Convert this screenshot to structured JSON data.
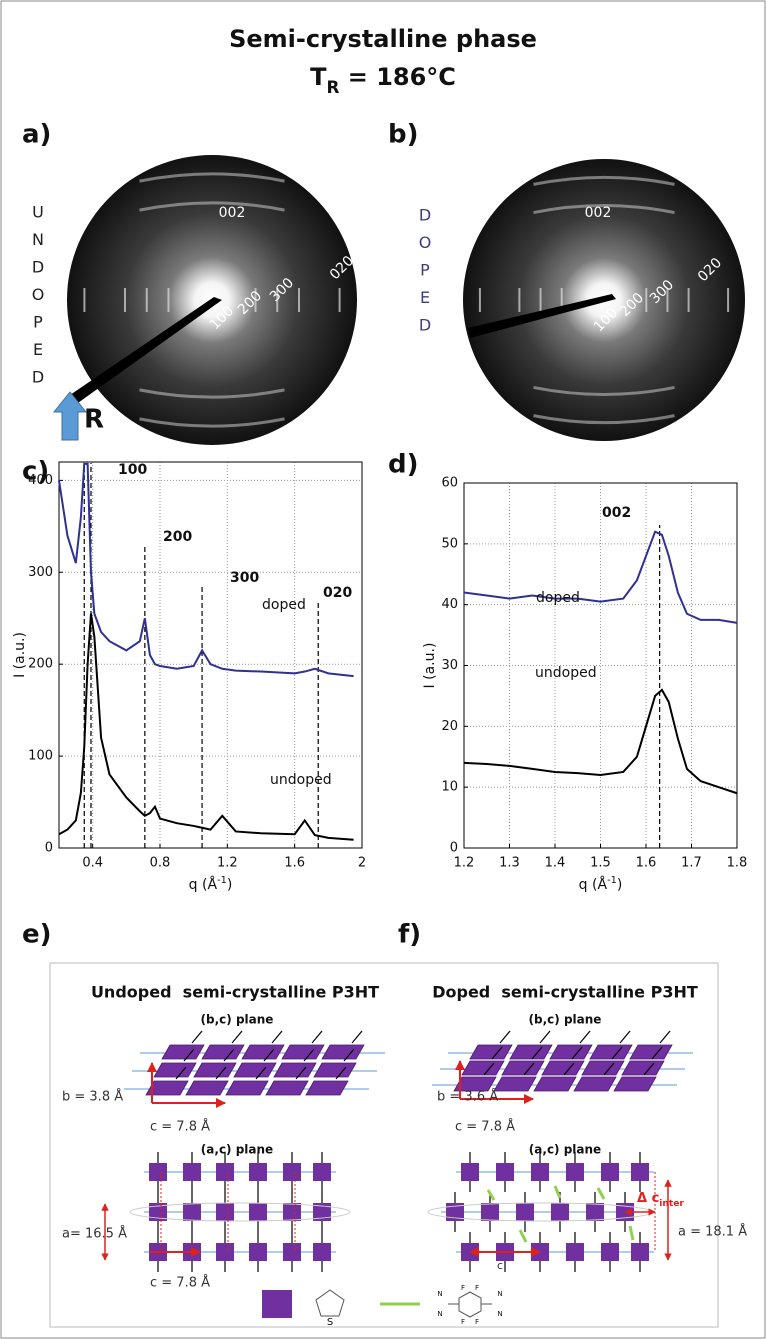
{
  "title": "Semi-crystalline phase",
  "condition": {
    "main": "T",
    "sub": "R",
    "rest": " = 186°C"
  },
  "panel_labels": [
    "a)",
    "b)",
    "c)",
    "d)",
    "e)",
    "f)"
  ],
  "diffraction": [
    {
      "side_letters": [
        "U",
        "N",
        "D",
        "O",
        "P",
        "E",
        "D"
      ],
      "rings": [
        "002",
        "100",
        "200",
        "300",
        "020"
      ],
      "rubbing": "R"
    },
    {
      "side_letters": [
        "D",
        "O",
        "P",
        "E",
        "D"
      ],
      "rings": [
        "002",
        "100",
        "200",
        "300",
        "020"
      ]
    }
  ],
  "chart_data": [
    {
      "type": "line",
      "x": [
        0.2,
        0.25,
        0.3,
        0.33,
        0.35,
        0.37,
        0.39,
        0.41,
        0.45,
        0.5,
        0.6,
        0.68,
        0.71,
        0.74,
        0.77,
        0.8,
        0.9,
        1.0,
        1.05,
        1.1,
        1.17,
        1.25,
        1.4,
        1.6,
        1.66,
        1.72,
        1.8,
        1.95
      ],
      "series": [
        {
          "name": "doped",
          "color": "#2e3192",
          "values": [
            400,
            340,
            310,
            360,
            418,
            418,
            300,
            255,
            235,
            225,
            215,
            225,
            250,
            210,
            200,
            198,
            195,
            198,
            215,
            200,
            195,
            193,
            192,
            190,
            192,
            195,
            190,
            187
          ]
        },
        {
          "name": "undoped",
          "color": "#000000",
          "values": [
            15,
            20,
            30,
            60,
            110,
            200,
            255,
            230,
            120,
            80,
            55,
            40,
            35,
            38,
            45,
            32,
            27,
            24,
            22,
            20,
            35,
            18,
            16,
            15,
            30,
            14,
            11,
            9
          ]
        }
      ],
      "xlim": [
        0.2,
        2
      ],
      "ylim": [
        0,
        420
      ],
      "xticks": [
        0.4,
        0.8,
        1.2,
        1.6,
        2
      ],
      "yticks": [
        0,
        100,
        200,
        300,
        400
      ],
      "xlabel": {
        "text": "q (Å",
        "sup": "-1",
        "end": ")"
      },
      "ylabel": "I (a.u.)",
      "grid": true,
      "peak_labels": [
        "100",
        "200",
        "300",
        "020"
      ],
      "reference_lines": [
        0.35,
        0.39,
        0.71,
        1.05,
        1.74
      ]
    },
    {
      "type": "line",
      "x": [
        1.2,
        1.25,
        1.3,
        1.35,
        1.4,
        1.45,
        1.5,
        1.55,
        1.58,
        1.6,
        1.62,
        1.635,
        1.65,
        1.67,
        1.69,
        1.72,
        1.76,
        1.8
      ],
      "series": [
        {
          "name": "doped",
          "color": "#2e3192",
          "values": [
            42,
            41.5,
            41,
            41.5,
            41,
            41,
            40.5,
            41,
            44,
            48,
            52,
            51.5,
            48,
            42,
            38.5,
            37.5,
            37.5,
            37
          ]
        },
        {
          "name": "undoped",
          "color": "#000000",
          "values": [
            14,
            13.8,
            13.5,
            13,
            12.5,
            12.3,
            12,
            12.5,
            15,
            20,
            25,
            26,
            24,
            18,
            13,
            11,
            10,
            9
          ]
        }
      ],
      "xlim": [
        1.2,
        1.8
      ],
      "ylim": [
        0,
        60
      ],
      "xticks": [
        1.2,
        1.3,
        1.4,
        1.5,
        1.6,
        1.7,
        1.8
      ],
      "yticks": [
        0,
        10,
        20,
        30,
        40,
        50,
        60
      ],
      "xlabel": {
        "text": "q (Å",
        "sup": "-1",
        "end": ")"
      },
      "ylabel": "I (a.u.)",
      "grid": true,
      "peak_labels": [
        "002"
      ],
      "reference_lines": [
        1.63
      ]
    }
  ],
  "schematic": {
    "left": {
      "title": "Undoped  semi-crystalline P3HT",
      "bc_plane": "(b,c) plane",
      "b": "b = 3.8 Å",
      "c_bc": "c = 7.8 Å",
      "ac_plane": "(a,c) plane",
      "a": "a= 16.5 Å",
      "c_ac": "c = 7.8 Å"
    },
    "right": {
      "title": "Doped  semi-crystalline P3HT",
      "bc_plane": "(b,c) plane",
      "b": "b = 3.6 Å",
      "c_bc": "c = 7.8 Å",
      "ac_plane": "(a,c) plane",
      "delta": {
        "main": "Δ c",
        "sub": "inter"
      },
      "a": "a = 18.1 Å",
      "c_ac": "c"
    },
    "legend": {
      "thiophene_atom": "S",
      "dopant_atoms": [
        "N",
        "N",
        "F",
        "F",
        "F",
        "F",
        "N",
        "N"
      ]
    }
  }
}
